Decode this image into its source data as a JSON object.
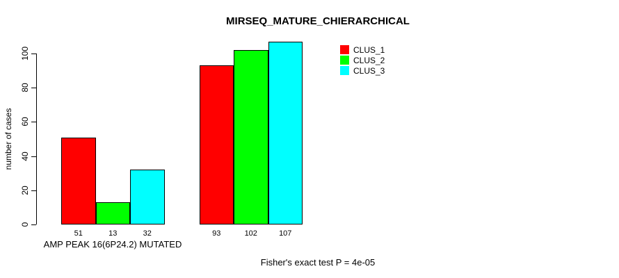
{
  "title": "MIRSEQ_MATURE_CHIERARCHICAL",
  "y_axis": {
    "label": "number of cases"
  },
  "x_axis": {
    "group1_label": "AMP PEAK 16(6P24.2) MUTATED"
  },
  "footer": "Fisher's exact test P = 4e-05",
  "legend": {
    "items": [
      {
        "label": "CLUS_1",
        "color": "#ff0000"
      },
      {
        "label": "CLUS_2",
        "color": "#00ff00"
      },
      {
        "label": "CLUS_3",
        "color": "#00ffff"
      }
    ]
  },
  "chart_data": {
    "type": "bar",
    "title": "MIRSEQ_MATURE_CHIERARCHICAL",
    "ylabel": "number of cases",
    "xlabel": "",
    "categories": [
      "AMP PEAK 16(6P24.2) MUTATED",
      ""
    ],
    "series": [
      {
        "name": "CLUS_1",
        "color": "#ff0000",
        "values": [
          51,
          93
        ]
      },
      {
        "name": "CLUS_2",
        "color": "#00ff00",
        "values": [
          13,
          102
        ]
      },
      {
        "name": "CLUS_3",
        "color": "#00ffff",
        "values": [
          32,
          107
        ]
      }
    ],
    "yticks": [
      0,
      20,
      40,
      60,
      80,
      100
    ],
    "ylim": [
      0,
      108
    ],
    "bar_value_labels": true,
    "grid": false,
    "legend_position": "top-right",
    "annotation": "Fisher's exact test P = 4e-05"
  }
}
